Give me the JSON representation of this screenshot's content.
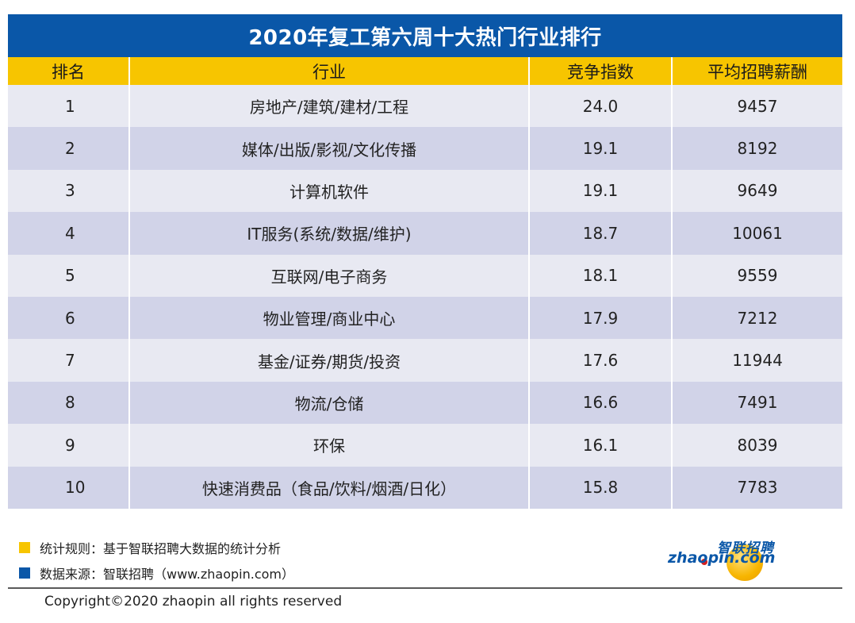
{
  "title": "2020年复工第六周十大热门行业排行",
  "headers": {
    "rank": "排名",
    "industry": "行业",
    "competition": "竞争指数",
    "salary": "平均招聘薪酬"
  },
  "rows": [
    {
      "rank": "1",
      "industry": "房地产/建筑/建材/工程",
      "competition": "24.0",
      "salary": "9457"
    },
    {
      "rank": "2",
      "industry": "媒体/出版/影视/文化传播",
      "competition": "19.1",
      "salary": "8192"
    },
    {
      "rank": "3",
      "industry": "计算机软件",
      "competition": "19.1",
      "salary": "9649"
    },
    {
      "rank": "4",
      "industry": "IT服务(系统/数据/维护)",
      "competition": "18.7",
      "salary": "10061"
    },
    {
      "rank": "5",
      "industry": "互联网/电子商务",
      "competition": "18.1",
      "salary": "9559"
    },
    {
      "rank": "6",
      "industry": "物业管理/商业中心",
      "competition": "17.9",
      "salary": "7212"
    },
    {
      "rank": "7",
      "industry": "基金/证券/期货/投资",
      "competition": "17.6",
      "salary": "11944"
    },
    {
      "rank": "8",
      "industry": "物流/仓储",
      "competition": "16.6",
      "salary": "7491"
    },
    {
      "rank": "9",
      "industry": "环保",
      "competition": "16.1",
      "salary": "8039"
    },
    {
      "rank": "10",
      "industry": "快速消费品（食品/饮料/烟酒/日化）",
      "competition": "15.8",
      "salary": "7783"
    }
  ],
  "footer": {
    "note1": "统计规则：基于智联招聘大数据的统计分析",
    "note2": "数据来源：智联招聘（www.zhaopin.com）",
    "copyright": "Copyright©2020 zhaopin all rights reserved"
  },
  "logo": {
    "cn": "智联招聘",
    "en": "zhaopin.com"
  },
  "colors": {
    "title_bg": "#0a57a8",
    "header_bg": "#f7c500",
    "row_light": "#e8e9f2",
    "row_dark": "#d1d3e8"
  }
}
